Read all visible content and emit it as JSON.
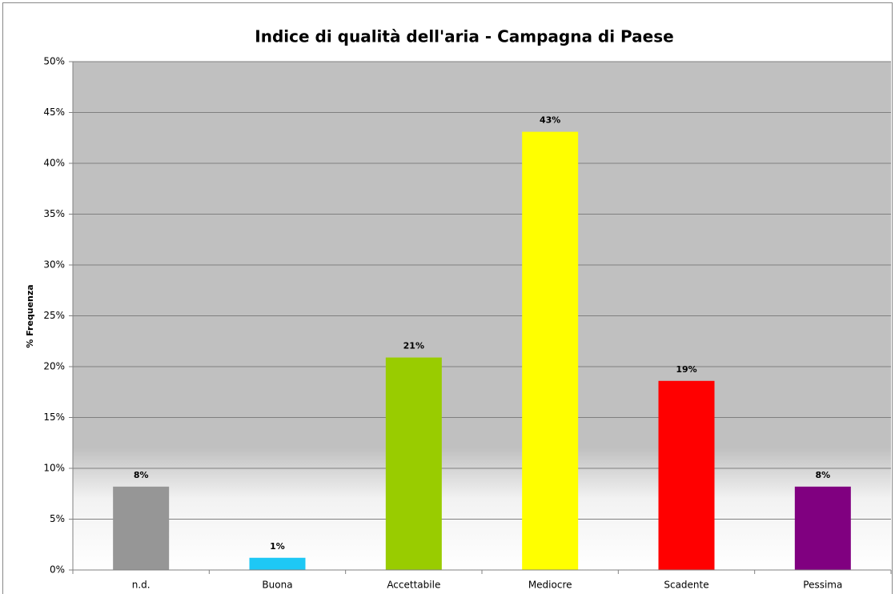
{
  "chart_data": {
    "type": "bar",
    "title": "Indice di qualità dell'aria - Campagna di Paese",
    "y_label": "% Frequenza",
    "categories": [
      "n.d.",
      "Buona",
      "Accettabile",
      "Mediocre",
      "Scadente",
      "Pessima"
    ],
    "values": [
      8.2,
      1.2,
      20.9,
      43.1,
      18.6,
      8.2
    ],
    "value_labels": [
      "8%",
      "1%",
      "21%",
      "43%",
      "19%",
      "8%"
    ],
    "colors": [
      "#969696",
      "#1ec8f5",
      "#99cc00",
      "#ffff00",
      "#ff0000",
      "#800080"
    ],
    "ylim": [
      0,
      50
    ],
    "yticks": [
      {
        "value": 0,
        "label": "0%"
      },
      {
        "value": 5,
        "label": "5%"
      },
      {
        "value": 10,
        "label": "10%"
      },
      {
        "value": 15,
        "label": "15%"
      },
      {
        "value": 20,
        "label": "20%"
      },
      {
        "value": 25,
        "label": "25%"
      },
      {
        "value": 30,
        "label": "30%"
      },
      {
        "value": 35,
        "label": "35%"
      },
      {
        "value": 40,
        "label": "40%"
      },
      {
        "value": 45,
        "label": "45%"
      },
      {
        "value": 50,
        "label": "50%"
      }
    ],
    "grid": true
  }
}
